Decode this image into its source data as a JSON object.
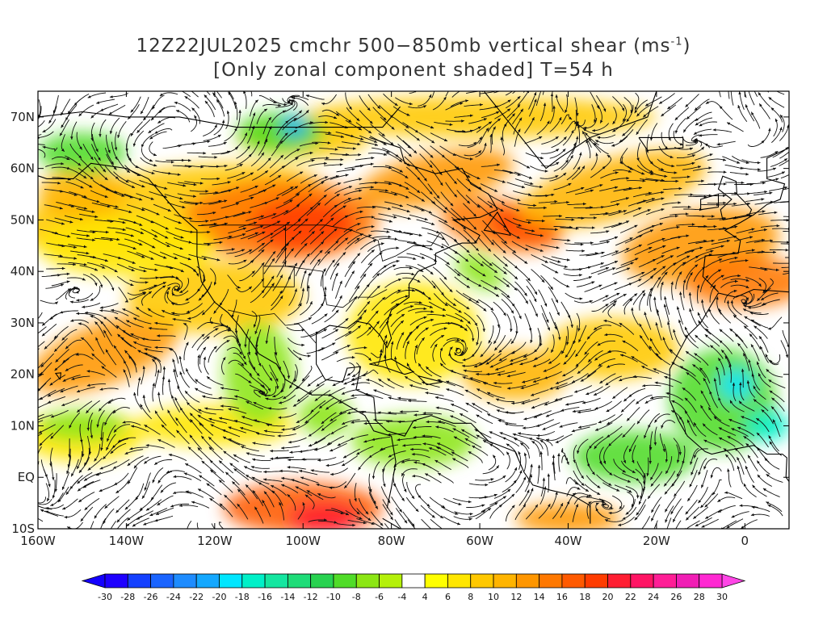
{
  "title": {
    "line1_main": "12Z22JUL2025 cmchr 500−850mb vertical shear (ms",
    "line1_exp": "-1",
    "line1_tail": ")",
    "line2": "[Only zonal component shaded] T=54 h"
  },
  "map": {
    "lat_range": [
      -10,
      75
    ],
    "lon_range": [
      -160,
      10
    ],
    "lat_labels": [
      "70N",
      "60N",
      "50N",
      "40N",
      "30N",
      "20N",
      "10N",
      "EQ",
      "10S"
    ],
    "lat_values": [
      70,
      60,
      50,
      40,
      30,
      20,
      10,
      0,
      -10
    ],
    "lon_labels": [
      "160W",
      "140W",
      "120W",
      "100W",
      "80W",
      "60W",
      "40W",
      "20W",
      "0"
    ],
    "lon_values": [
      -160,
      -140,
      -120,
      -100,
      -80,
      -60,
      -40,
      -20,
      0
    ]
  },
  "colorbar": {
    "labels": [
      "-30",
      "-28",
      "-26",
      "-24",
      "-22",
      "-20",
      "-18",
      "-16",
      "-14",
      "-12",
      "-10",
      "-8",
      "-6",
      "-4",
      "4",
      "6",
      "8",
      "10",
      "12",
      "14",
      "16",
      "18",
      "20",
      "22",
      "24",
      "26",
      "28",
      "30"
    ],
    "colors": [
      "#1e00ff",
      "#1440ff",
      "#1a64ff",
      "#1e8cff",
      "#14a8ff",
      "#00e6ff",
      "#00f0c8",
      "#14e6a0",
      "#1edc78",
      "#28d250",
      "#50dc28",
      "#8ce614",
      "#b4f00a",
      "#ffffff",
      "#ffff00",
      "#ffe600",
      "#ffc800",
      "#ffb400",
      "#ff9600",
      "#ff7800",
      "#ff5a00",
      "#ff3c00",
      "#ff1e32",
      "#ff1464",
      "#ff1e96",
      "#f01eb4",
      "#ff28d2"
    ],
    "under_color": "#1400ff",
    "over_color": "#ff46e6"
  }
}
